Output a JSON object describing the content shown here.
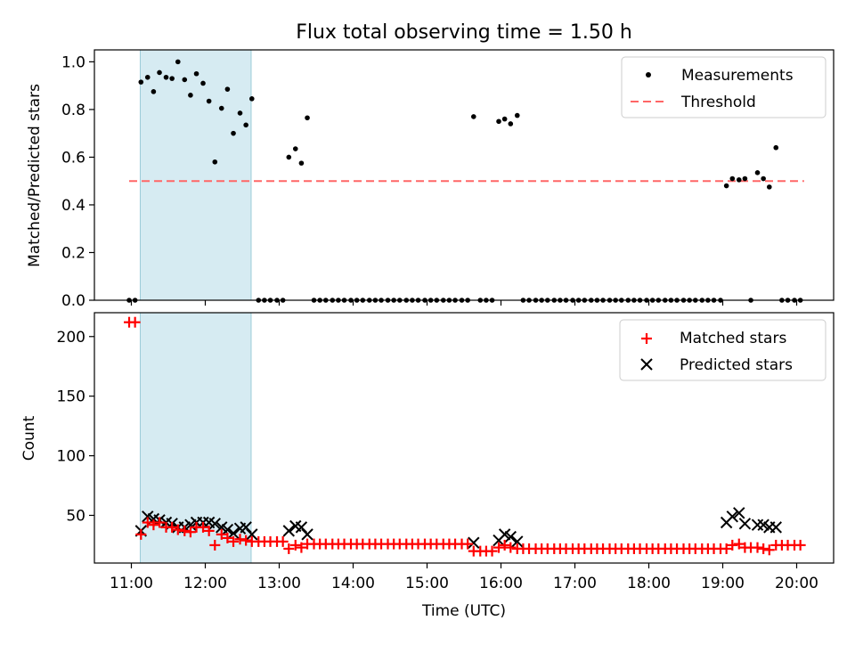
{
  "chart_data": {
    "title": "Flux total observing time = 1.50 h",
    "xlabel": "Time (UTC)",
    "x_ticks": [
      "11:00",
      "12:00",
      "13:00",
      "14:00",
      "15:00",
      "16:00",
      "17:00",
      "18:00",
      "19:00",
      "20:00"
    ],
    "x_tick_hours": [
      11,
      12,
      13,
      14,
      15,
      16,
      17,
      18,
      19,
      20
    ],
    "xlim_hours": [
      10.5,
      20.5
    ],
    "highlight_span_hours": [
      11.12,
      12.62
    ],
    "highlight_color": "#add8e6",
    "top": {
      "type": "scatter",
      "ylabel": "Matched/Predicted stars",
      "ylim": [
        0,
        1.05
      ],
      "y_ticks": [
        "0.0",
        "0.2",
        "0.4",
        "0.6",
        "0.8",
        "1.0"
      ],
      "y_tick_values": [
        0,
        0.2,
        0.4,
        0.6,
        0.8,
        1.0
      ],
      "legend_placement": "top-right",
      "threshold": {
        "name": "Threshold",
        "value": 0.5,
        "x_range_hours": [
          10.97,
          20.1
        ],
        "color": "#ff6666"
      },
      "measurements": {
        "name": "Measurements",
        "color": "#000000",
        "x_hours": [
          10.97,
          11.05,
          11.13,
          11.22,
          11.3,
          11.38,
          11.47,
          11.55,
          11.63,
          11.72,
          11.8,
          11.88,
          11.97,
          12.05,
          12.13,
          12.22,
          12.3,
          12.38,
          12.47,
          12.55,
          12.63,
          12.72,
          12.8,
          12.88,
          12.97,
          13.05,
          13.13,
          13.22,
          13.3,
          13.38,
          13.47,
          13.55,
          13.63,
          13.72,
          13.8,
          13.88,
          13.97,
          14.05,
          14.13,
          14.22,
          14.3,
          14.38,
          14.47,
          14.55,
          14.63,
          14.72,
          14.8,
          14.88,
          14.97,
          15.05,
          15.13,
          15.22,
          15.3,
          15.38,
          15.47,
          15.55,
          15.63,
          15.72,
          15.8,
          15.88,
          15.97,
          16.05,
          16.13,
          16.22,
          16.3,
          16.38,
          16.47,
          16.55,
          16.63,
          16.72,
          16.8,
          16.88,
          16.97,
          17.05,
          17.13,
          17.22,
          17.3,
          17.38,
          17.47,
          17.55,
          17.63,
          17.72,
          17.8,
          17.88,
          17.97,
          18.05,
          18.13,
          18.22,
          18.3,
          18.38,
          18.47,
          18.55,
          18.63,
          18.72,
          18.8,
          18.88,
          18.97,
          19.05,
          19.13,
          19.22,
          19.3,
          19.38,
          19.47,
          19.55,
          19.63,
          19.72,
          19.8,
          19.88,
          19.97,
          20.05
        ],
        "y": [
          0,
          0,
          0.915,
          0.935,
          0.875,
          0.955,
          0.935,
          0.93,
          1.0,
          0.925,
          0.86,
          0.95,
          0.91,
          0.835,
          0.58,
          0.805,
          0.885,
          0.7,
          0.785,
          0.735,
          0.845,
          0,
          0,
          0,
          0,
          0,
          0.6,
          0.635,
          0.575,
          0.765,
          0,
          0,
          0,
          0,
          0,
          0,
          0,
          0,
          0,
          0,
          0,
          0,
          0,
          0,
          0,
          0,
          0,
          0,
          0,
          0,
          0,
          0,
          0,
          0,
          0,
          0,
          0.77,
          0,
          0,
          0,
          0.75,
          0.76,
          0.74,
          0.775,
          0,
          0,
          0,
          0,
          0,
          0,
          0,
          0,
          0,
          0,
          0,
          0,
          0,
          0,
          0,
          0,
          0,
          0,
          0,
          0,
          0,
          0,
          0,
          0,
          0,
          0,
          0,
          0,
          0,
          0,
          0,
          0,
          0,
          0.48,
          0.51,
          0.505,
          0.51,
          0,
          0.535,
          0.51,
          0.475,
          0.64,
          0,
          0,
          0,
          0
        ]
      }
    },
    "bottom": {
      "type": "scatter",
      "ylabel": "Count",
      "ylim": [
        10,
        220
      ],
      "y_ticks": [
        "50",
        "100",
        "150",
        "200"
      ],
      "y_tick_values": [
        50,
        100,
        150,
        200
      ],
      "legend_placement": "top-right",
      "matched": {
        "name": "Matched stars",
        "color": "#ff0000",
        "x_hours": [
          10.97,
          11.05,
          11.13,
          11.22,
          11.3,
          11.38,
          11.47,
          11.55,
          11.63,
          11.72,
          11.8,
          11.88,
          11.97,
          12.05,
          12.13,
          12.22,
          12.3,
          12.38,
          12.47,
          12.55,
          12.63,
          12.72,
          12.8,
          12.88,
          12.97,
          13.05,
          13.13,
          13.22,
          13.3,
          13.38,
          13.47,
          13.55,
          13.63,
          13.72,
          13.8,
          13.88,
          13.97,
          14.05,
          14.13,
          14.22,
          14.3,
          14.38,
          14.47,
          14.55,
          14.63,
          14.72,
          14.8,
          14.88,
          14.97,
          15.05,
          15.13,
          15.22,
          15.3,
          15.38,
          15.47,
          15.55,
          15.63,
          15.72,
          15.8,
          15.88,
          15.97,
          16.05,
          16.13,
          16.22,
          16.3,
          16.38,
          16.47,
          16.55,
          16.63,
          16.72,
          16.8,
          16.88,
          16.97,
          17.05,
          17.13,
          17.22,
          17.3,
          17.38,
          17.47,
          17.55,
          17.63,
          17.72,
          17.8,
          17.88,
          17.97,
          18.05,
          18.13,
          18.22,
          18.3,
          18.38,
          18.47,
          18.55,
          18.63,
          18.72,
          18.8,
          18.88,
          18.97,
          19.05,
          19.13,
          19.22,
          19.3,
          19.38,
          19.47,
          19.55,
          19.63,
          19.72,
          19.8,
          19.88,
          19.97,
          20.05
        ],
        "y": [
          212,
          212,
          34,
          44,
          42,
          44,
          40,
          40,
          38,
          37,
          36,
          40,
          40,
          37,
          25,
          34,
          31,
          28,
          30,
          29,
          28,
          28,
          28,
          28,
          28,
          28,
          22,
          25,
          23,
          26,
          26,
          26,
          26,
          26,
          26,
          26,
          26,
          26,
          26,
          26,
          26,
          26,
          26,
          26,
          26,
          26,
          26,
          26,
          26,
          26,
          26,
          26,
          26,
          26,
          26,
          26,
          20,
          20,
          20,
          20,
          23,
          25,
          23,
          22,
          22,
          22,
          22,
          22,
          22,
          22,
          22,
          22,
          22,
          22,
          22,
          22,
          22,
          22,
          22,
          22,
          22,
          22,
          22,
          22,
          22,
          22,
          22,
          22,
          22,
          22,
          22,
          22,
          22,
          22,
          22,
          22,
          22,
          22,
          25,
          26,
          23,
          23,
          23,
          22,
          21,
          25,
          25,
          25,
          25,
          25
        ]
      },
      "predicted": {
        "name": "Predicted stars",
        "color": "#000000",
        "x_hours": [
          11.13,
          11.22,
          11.3,
          11.38,
          11.47,
          11.55,
          11.63,
          11.72,
          11.8,
          11.88,
          11.97,
          12.05,
          12.13,
          12.22,
          12.3,
          12.38,
          12.47,
          12.55,
          12.63,
          13.13,
          13.22,
          13.3,
          13.38,
          15.63,
          15.97,
          16.05,
          16.13,
          16.22,
          19.05,
          19.13,
          19.22,
          19.3,
          19.47,
          19.55,
          19.63,
          19.72
        ],
        "y": [
          37,
          49,
          47,
          46,
          44,
          43,
          40,
          40,
          42,
          44,
          44,
          44,
          43,
          40,
          38,
          35,
          39,
          40,
          34,
          37,
          41,
          40,
          34,
          27,
          29,
          34,
          32,
          28,
          44,
          49,
          52,
          43,
          42,
          42,
          40,
          40
        ]
      }
    }
  }
}
